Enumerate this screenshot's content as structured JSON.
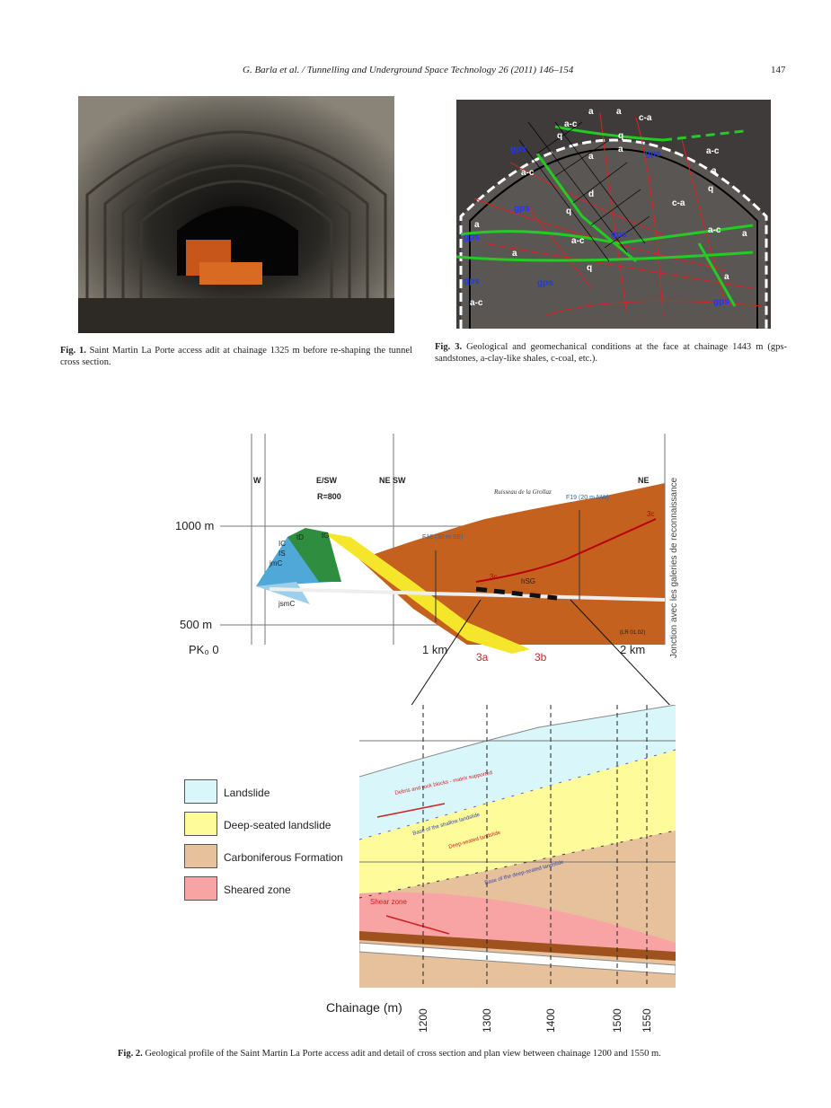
{
  "header": {
    "running_title": "G. Barla et al. / Tunnelling and Underground Space Technology 26 (2011) 146–154",
    "page_number": "147"
  },
  "fig1": {
    "label": "Fig. 1.",
    "text": "Saint Martin La Porte access adit at chainage 1325 m before re-shaping the tunnel cross section."
  },
  "fig3": {
    "label": "Fig. 3.",
    "text": "Geological and geomechanical conditions at the face at chainage 1443 m (gps-sandstones, a-clay-like shales, c-coal, etc.).",
    "face_labels": [
      "a",
      "a",
      "c-a",
      "a-c",
      "q",
      "q",
      "gps",
      "a",
      "a",
      "gps",
      "a-c",
      "a",
      "a-c",
      "q",
      "d",
      "c-a",
      "gps",
      "q",
      "gps",
      "a-c",
      "a",
      "a",
      "a-c",
      "q",
      "gps",
      "gps",
      "gps",
      "a-c",
      "gps",
      "a",
      "a"
    ]
  },
  "fig2": {
    "label": "Fig. 2.",
    "text": "Geological profile of the Saint Martin La Porte access adit and detail of cross section and plan view between chainage 1200 and 1550 m.",
    "profile": {
      "top_labels": [
        "W",
        "E/SW",
        "NE SW",
        "NE"
      ],
      "radius": "R=800",
      "stream": "Ruisseau de la Grollaz",
      "f18": "F18 (30 m SE)",
      "f19": "F19 (20 m NW)",
      "elev_1000": "1000 m",
      "elev_500": "500 m",
      "pk0": "PK₀ 0",
      "km1": "1 km",
      "km2": "2 km",
      "unit_labels": [
        "tD",
        "tG",
        "IC",
        "IS",
        "jmC",
        "jsmC",
        "hSG",
        "3c",
        "3c"
      ],
      "fault_labels": [
        "3a",
        "3b"
      ],
      "junction": "Jonction avec les galeries de reconnaissance",
      "ref": "(LR 01.02)"
    },
    "legend": [
      {
        "label": "Landslide",
        "color": "#d9f6fb"
      },
      {
        "label": "Deep-seated landslide",
        "color": "#fdfb9a"
      },
      {
        "label": "Carboniferous Formation",
        "color": "#e6c19b"
      },
      {
        "label": "Sheared zone",
        "color": "#f9a4a4"
      }
    ],
    "chainage_title": "Chainage (m)",
    "chainages": [
      "1200",
      "1300",
      "1400",
      "1500",
      "1550"
    ],
    "detail_annotations": [
      "Debris and rock blocks - matrix supported",
      "Base of the shallow landslide",
      "Deep-seated landslide",
      "Base of the deep-seated landslide",
      "Shear zone"
    ]
  }
}
